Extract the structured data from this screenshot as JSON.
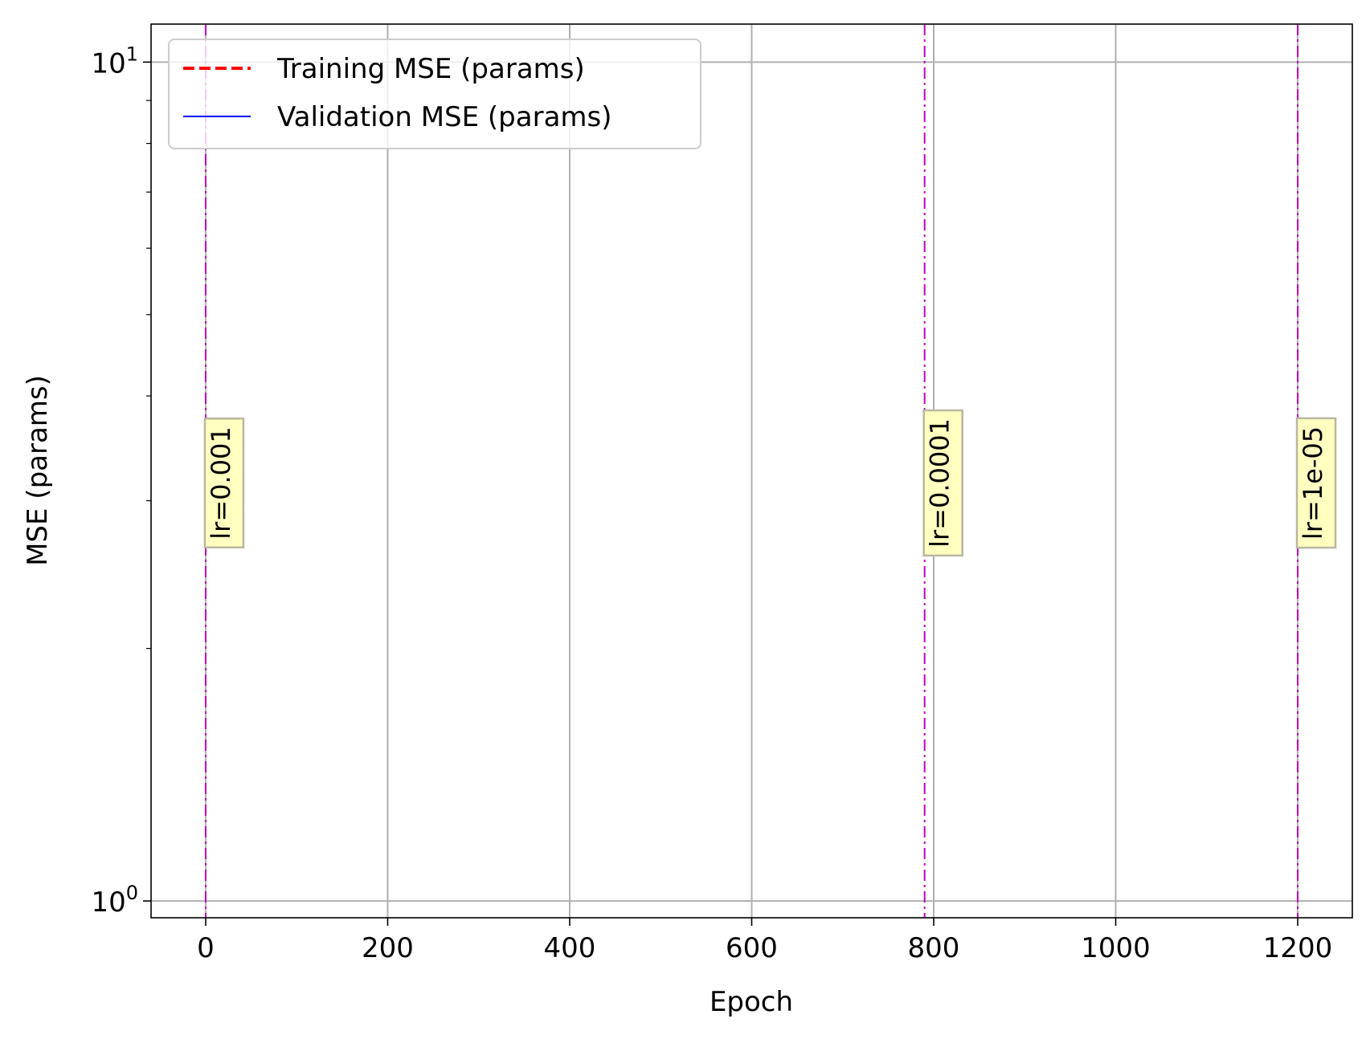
{
  "chart_data": {
    "type": "line",
    "title": "",
    "xlabel": "Epoch",
    "ylabel": "MSE (params)",
    "xlim": [
      -60,
      1260
    ],
    "ylim": [
      0.955,
      11.1
    ],
    "yscale": "log",
    "grid": true,
    "x_ticks": [
      0,
      200,
      400,
      600,
      800,
      1000,
      1200
    ],
    "x_tick_labels": [
      "0",
      "200",
      "400",
      "600",
      "800",
      "1000",
      "1200"
    ],
    "y_major_ticks": [
      {
        "value": 1,
        "base": "10",
        "exponent": "0"
      },
      {
        "value": 10,
        "base": "10",
        "exponent": "1"
      }
    ],
    "y_minor_ticks": [
      2,
      3,
      4,
      5,
      6,
      7,
      8,
      9
    ],
    "legend": {
      "position": "upper-left",
      "entries": [
        {
          "label": "Training MSE (params)",
          "color": "#ff0000",
          "style": "dashed"
        },
        {
          "label": "Validation MSE (params)",
          "color": "#0000ff",
          "style": "solid"
        }
      ]
    },
    "series": [
      {
        "name": "Training MSE (params)",
        "color": "#ff0000",
        "style": "dashed",
        "x": [],
        "y": []
      },
      {
        "name": "Validation MSE (params)",
        "color": "#0000ff",
        "style": "solid",
        "x": [],
        "y": []
      }
    ],
    "lr_markers": [
      {
        "epoch": 0,
        "label": "lr=0.001",
        "y_center": 3.15
      },
      {
        "epoch": 790,
        "label": "lr=0.0001",
        "y_center": 3.15
      },
      {
        "epoch": 1200,
        "label": "lr=1e-05",
        "y_center": 3.15
      }
    ],
    "colors": {
      "grid": "#b0b0b0",
      "marker_line": "#bf00bf",
      "annotation_fill": "#ffffc0",
      "annotation_edge": "#b8b8a0"
    }
  }
}
